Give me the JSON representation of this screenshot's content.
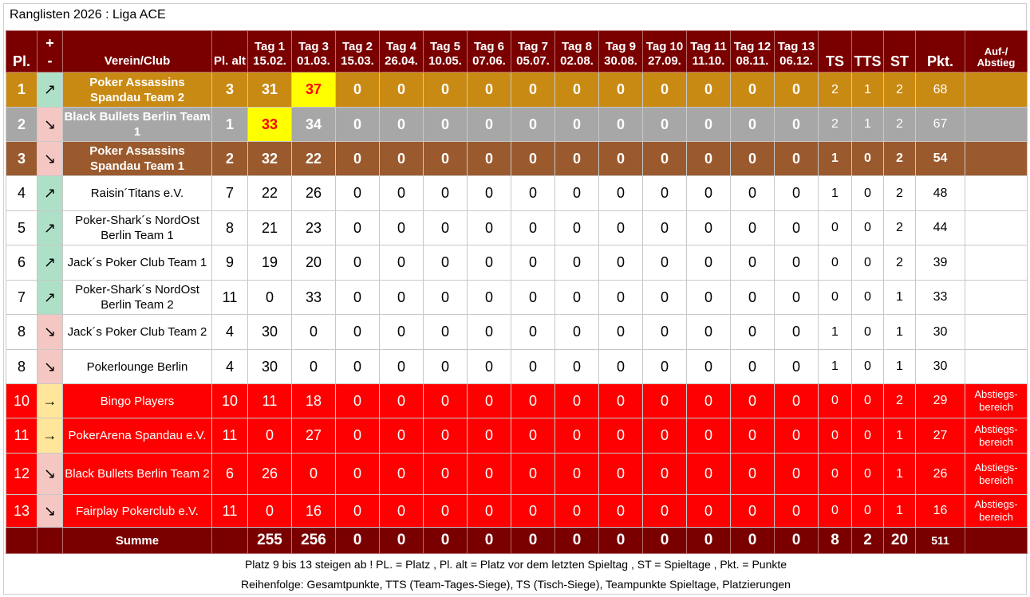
{
  "title": "Ranglisten 2026 : Liga ACE",
  "headers": {
    "place": "Pl.",
    "trend_plus": "+",
    "trend_minus": "-",
    "club": "Verein/Club",
    "place_old": "Pl. alt",
    "days": [
      "Tag 1 15.02.",
      "Tag 3 01.03.",
      "Tag 2 15.03.",
      "Tag 4 26.04.",
      "Tag 5 10.05.",
      "Tag 6 07.06.",
      "Tag 7 05.07.",
      "Tag 8 02.08.",
      "Tag 9 30.08.",
      "Tag 10 27.09.",
      "Tag 11 11.10.",
      "Tag 12 08.11.",
      "Tag 13 06.12."
    ],
    "ts": "TS",
    "tts": "TTS",
    "st": "ST",
    "pts": "Pkt.",
    "updown": "Auf-/ Abstieg"
  },
  "rows": [
    {
      "place": "1",
      "trend": "↗",
      "trend_dir": "up",
      "club": "Poker Assassins Spandau Team 2",
      "old": "3",
      "days": [
        "31",
        "37",
        "0",
        "0",
        "0",
        "0",
        "0",
        "0",
        "0",
        "0",
        "0",
        "0",
        "0"
      ],
      "ts": "2",
      "tts": "1",
      "st": "2",
      "pts": "68",
      "note": "",
      "style": "gold",
      "highlight_day": 1
    },
    {
      "place": "2",
      "trend": "↘",
      "trend_dir": "down",
      "club": "Black Bullets Berlin Team 1",
      "old": "1",
      "days": [
        "33",
        "34",
        "0",
        "0",
        "0",
        "0",
        "0",
        "0",
        "0",
        "0",
        "0",
        "0",
        "0"
      ],
      "ts": "2",
      "tts": "1",
      "st": "2",
      "pts": "67",
      "note": "",
      "style": "silver",
      "highlight_day": 0
    },
    {
      "place": "3",
      "trend": "↘",
      "trend_dir": "down",
      "club": "Poker Assassins Spandau Team 1",
      "old": "2",
      "days": [
        "32",
        "22",
        "0",
        "0",
        "0",
        "0",
        "0",
        "0",
        "0",
        "0",
        "0",
        "0",
        "0"
      ],
      "ts": "1",
      "tts": "0",
      "st": "2",
      "pts": "54",
      "note": "",
      "style": "bronze",
      "highlight_day": -1
    },
    {
      "place": "4",
      "trend": "↗",
      "trend_dir": "up",
      "club": "Raisin´Titans e.V.",
      "old": "7",
      "days": [
        "22",
        "26",
        "0",
        "0",
        "0",
        "0",
        "0",
        "0",
        "0",
        "0",
        "0",
        "0",
        "0"
      ],
      "ts": "1",
      "tts": "0",
      "st": "2",
      "pts": "48",
      "note": "",
      "style": "white",
      "highlight_day": -1
    },
    {
      "place": "5",
      "trend": "↗",
      "trend_dir": "up",
      "club": "Poker-Shark´s NordOst Berlin Team 1",
      "old": "8",
      "days": [
        "21",
        "23",
        "0",
        "0",
        "0",
        "0",
        "0",
        "0",
        "0",
        "0",
        "0",
        "0",
        "0"
      ],
      "ts": "0",
      "tts": "0",
      "st": "2",
      "pts": "44",
      "note": "",
      "style": "white",
      "highlight_day": -1
    },
    {
      "place": "6",
      "trend": "↗",
      "trend_dir": "up",
      "club": "Jack´s Poker Club Team 1",
      "old": "9",
      "days": [
        "19",
        "20",
        "0",
        "0",
        "0",
        "0",
        "0",
        "0",
        "0",
        "0",
        "0",
        "0",
        "0"
      ],
      "ts": "0",
      "tts": "0",
      "st": "2",
      "pts": "39",
      "note": "",
      "style": "white",
      "highlight_day": -1
    },
    {
      "place": "7",
      "trend": "↗",
      "trend_dir": "up",
      "club": "Poker-Shark´s NordOst Berlin Team 2",
      "old": "11",
      "days": [
        "0",
        "33",
        "0",
        "0",
        "0",
        "0",
        "0",
        "0",
        "0",
        "0",
        "0",
        "0",
        "0"
      ],
      "ts": "0",
      "tts": "0",
      "st": "1",
      "pts": "33",
      "note": "",
      "style": "white",
      "highlight_day": -1
    },
    {
      "place": "8",
      "trend": "↘",
      "trend_dir": "down",
      "club": "Jack´s Poker Club Team 2",
      "old": "4",
      "days": [
        "30",
        "0",
        "0",
        "0",
        "0",
        "0",
        "0",
        "0",
        "0",
        "0",
        "0",
        "0",
        "0"
      ],
      "ts": "1",
      "tts": "0",
      "st": "1",
      "pts": "30",
      "note": "",
      "style": "white",
      "highlight_day": -1
    },
    {
      "place": "8",
      "trend": "↘",
      "trend_dir": "down",
      "club": "Pokerlounge Berlin",
      "old": "4",
      "days": [
        "30",
        "0",
        "0",
        "0",
        "0",
        "0",
        "0",
        "0",
        "0",
        "0",
        "0",
        "0",
        "0"
      ],
      "ts": "1",
      "tts": "0",
      "st": "1",
      "pts": "30",
      "note": "",
      "style": "white",
      "highlight_day": -1
    },
    {
      "place": "10",
      "trend": "→",
      "trend_dir": "flat",
      "club": "Bingo Players",
      "old": "10",
      "days": [
        "11",
        "18",
        "0",
        "0",
        "0",
        "0",
        "0",
        "0",
        "0",
        "0",
        "0",
        "0",
        "0"
      ],
      "ts": "0",
      "tts": "0",
      "st": "2",
      "pts": "29",
      "note": "Abstiegs-bereich",
      "style": "red",
      "highlight_day": -1
    },
    {
      "place": "11",
      "trend": "→",
      "trend_dir": "flat",
      "club": "PokerArena Spandau e.V.",
      "old": "11",
      "days": [
        "0",
        "27",
        "0",
        "0",
        "0",
        "0",
        "0",
        "0",
        "0",
        "0",
        "0",
        "0",
        "0"
      ],
      "ts": "0",
      "tts": "0",
      "st": "1",
      "pts": "27",
      "note": "Abstiegs-bereich",
      "style": "red",
      "highlight_day": -1
    },
    {
      "place": "12",
      "trend": "↘",
      "trend_dir": "down",
      "club": "Black Bullets Berlin Team 2",
      "old": "6",
      "days": [
        "26",
        "0",
        "0",
        "0",
        "0",
        "0",
        "0",
        "0",
        "0",
        "0",
        "0",
        "0",
        "0"
      ],
      "ts": "0",
      "tts": "0",
      "st": "1",
      "pts": "26",
      "note": "Abstiegs-bereich",
      "style": "red",
      "highlight_day": -1
    },
    {
      "place": "13",
      "trend": "↘",
      "trend_dir": "down",
      "club": "Fairplay Pokerclub e.V.",
      "old": "11",
      "days": [
        "0",
        "16",
        "0",
        "0",
        "0",
        "0",
        "0",
        "0",
        "0",
        "0",
        "0",
        "0",
        "0"
      ],
      "ts": "0",
      "tts": "0",
      "st": "1",
      "pts": "16",
      "note": "Abstiegs-bereich",
      "style": "red",
      "highlight_day": -1
    }
  ],
  "sum": {
    "label": "Summe",
    "days": [
      "255",
      "256",
      "0",
      "0",
      "0",
      "0",
      "0",
      "0",
      "0",
      "0",
      "0",
      "0",
      "0"
    ],
    "ts": "8",
    "tts": "2",
    "st": "20",
    "pts": "511"
  },
  "footer": {
    "line1": "Platz 9 bis 13 steigen ab ! PL. = Platz , Pl. alt = Platz vor dem letzten Spieltag , ST = Spieltage , Pkt. = Punkte",
    "line2": "Reihenfolge: Gesamtpunkte, TTS (Team-Tages-Siege), TS (Tisch-Siege), Teampunkte Spieltage, Platzierungen"
  }
}
